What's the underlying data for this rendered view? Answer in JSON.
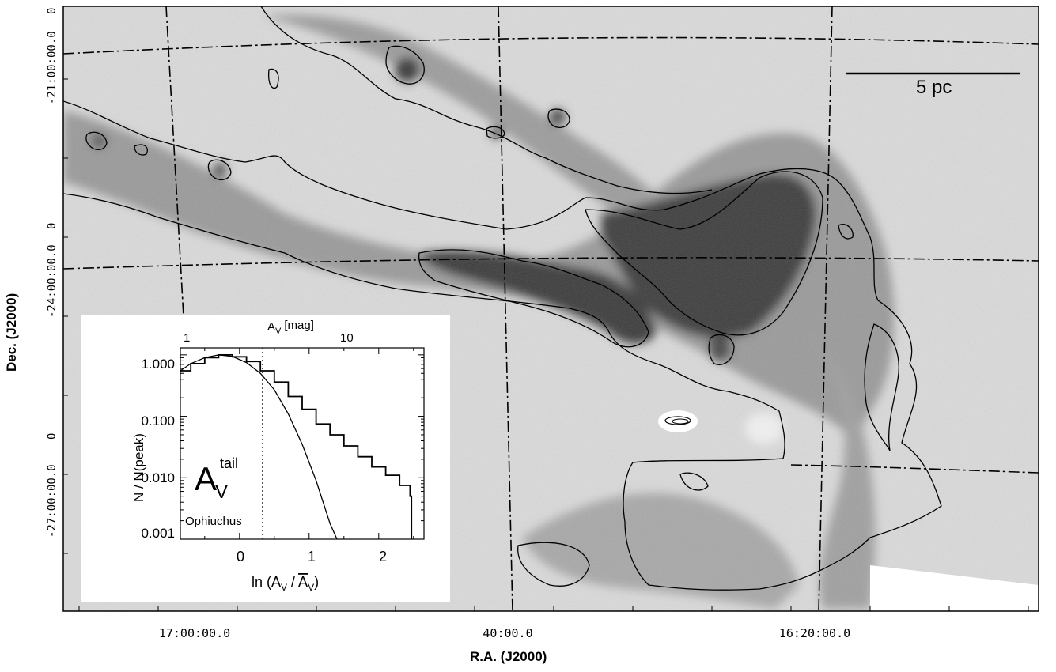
{
  "axes": {
    "ylabel": "Dec. (J2000)",
    "xlabel": "R.A. (J2000)",
    "dec_ticks": [
      "-21:00:00.0",
      "-24:00:00.0",
      "-27:00:00.0"
    ],
    "ra_ticks": [
      "17:00:00.0",
      "40:00.0",
      "16:20:00.0"
    ],
    "top_left_tick": "0"
  },
  "scale_bar": {
    "label": "5 pc"
  },
  "inset": {
    "top_axis": {
      "label": "A",
      "label_sub": "V",
      "unit": "[mag]",
      "ticks": [
        "1",
        "10"
      ]
    },
    "y_ticks": [
      "1.000",
      "0.100",
      "0.010",
      "0.001"
    ],
    "y_label": "N / N(peak)",
    "x_ticks": [
      "0",
      "1",
      "2"
    ],
    "x_label": {
      "prefix": "ln (A",
      "sub1": "V",
      "middle": " / ",
      "bar": "A",
      "sub2": "V",
      "suffix": ")"
    },
    "annotation": {
      "main": "A",
      "sub": "V",
      "sup": "tail"
    },
    "region": "Ophiuchus"
  },
  "chart_data": {
    "type": "line",
    "title": "",
    "xlabel": "ln (AV / AV-mean)",
    "ylabel": "N / N(peak)",
    "yscale": "log",
    "xlim": [
      -0.85,
      2.65
    ],
    "ylim": [
      0.001,
      1.3
    ],
    "vline": 0.33,
    "series": [
      {
        "x": [
          -0.85,
          -0.7,
          -0.5,
          -0.3,
          -0.1,
          0.1,
          0.3,
          0.5,
          0.7,
          0.9,
          1.1,
          1.3,
          1.5,
          1.7,
          1.9,
          2.1,
          2.3,
          2.45,
          2.47,
          2.47
        ],
        "values": [
          0.55,
          0.72,
          0.9,
          1.0,
          0.93,
          0.78,
          0.55,
          0.36,
          0.21,
          0.13,
          0.075,
          0.05,
          0.033,
          0.022,
          0.015,
          0.011,
          0.0075,
          0.005,
          0.005,
          0.001
        ]
      },
      {
        "x": [
          -0.85,
          -0.7,
          -0.5,
          -0.3,
          -0.1,
          0.1,
          0.3,
          0.5,
          0.7,
          0.9,
          1.1,
          1.3,
          1.4
        ],
        "values": [
          0.55,
          0.72,
          0.9,
          1.0,
          0.94,
          0.75,
          0.5,
          0.27,
          0.11,
          0.035,
          0.009,
          0.0018,
          0.001
        ]
      }
    ]
  }
}
